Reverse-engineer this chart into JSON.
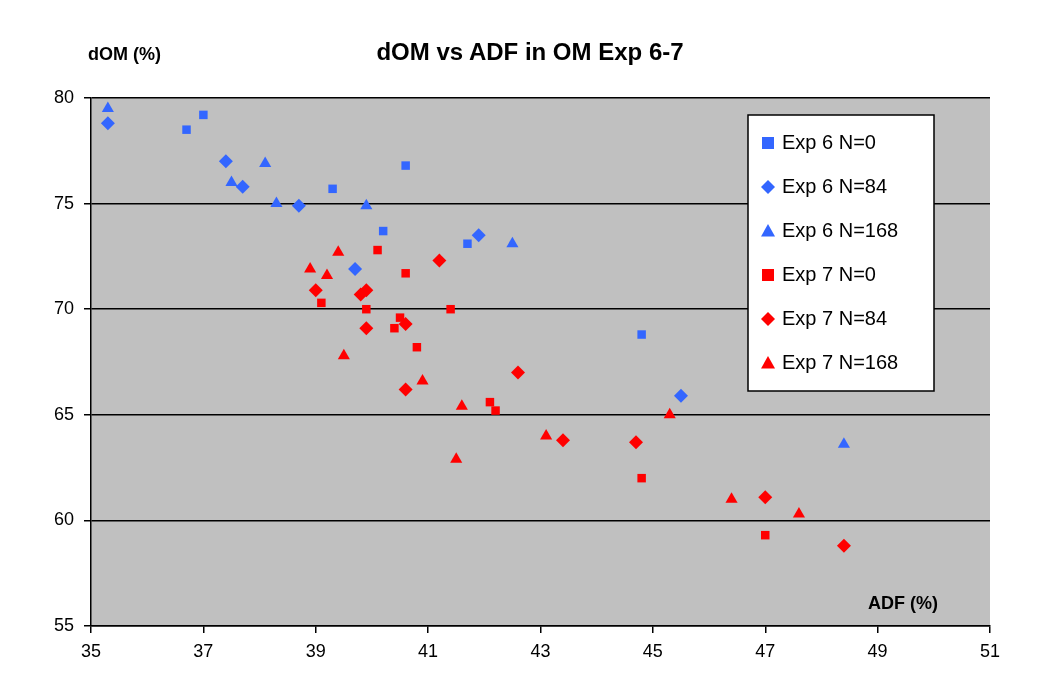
{
  "chart_data": {
    "type": "scatter",
    "title": "dOM vs ADF in OM Exp 6-7",
    "xlabel": "ADF (%)",
    "ylabel": "dOM (%)",
    "xlim": [
      35,
      51
    ],
    "xticks": [
      35,
      37,
      39,
      41,
      43,
      45,
      47,
      49,
      51
    ],
    "ylim": [
      55,
      80
    ],
    "yticks": [
      55,
      60,
      65,
      70,
      75,
      80
    ],
    "grid": "y",
    "legend": "top right",
    "series": [
      {
        "name": "Exp 6 N=0",
        "color": "#3366ff",
        "marker": "square",
        "x": [
          36.7,
          37.0,
          39.3,
          40.2,
          40.6,
          41.7,
          44.8
        ],
        "values": [
          78.5,
          79.2,
          75.7,
          73.7,
          76.8,
          73.1,
          68.8
        ]
      },
      {
        "name": "Exp 6 N=84",
        "color": "#3366ff",
        "marker": "diamond",
        "x": [
          35.3,
          37.4,
          37.7,
          38.7,
          39.7,
          41.9,
          45.5
        ],
        "values": [
          78.8,
          77.0,
          75.8,
          74.9,
          71.9,
          73.5,
          65.9
        ]
      },
      {
        "name": "Exp 6 N=168",
        "color": "#3366ff",
        "marker": "triangle",
        "x": [
          35.3,
          37.5,
          38.1,
          38.3,
          39.9,
          42.5,
          48.4
        ],
        "values": [
          79.5,
          76.0,
          76.9,
          75.0,
          74.9,
          73.1,
          63.6
        ]
      },
      {
        "name": "Exp 7 N=0",
        "color": "#ff0000",
        "marker": "square",
        "x": [
          40.1,
          40.6,
          39.9,
          39.1,
          40.5,
          40.4,
          41.4,
          40.8,
          42.1,
          42.2,
          44.8,
          47.0
        ],
        "values": [
          72.8,
          71.7,
          70.0,
          70.3,
          69.6,
          69.1,
          70.0,
          68.2,
          65.6,
          65.2,
          62.0,
          59.3
        ]
      },
      {
        "name": "Exp 7 N=84",
        "color": "#ff0000",
        "marker": "diamond",
        "x": [
          39.0,
          39.8,
          39.9,
          39.9,
          40.6,
          40.6,
          41.2,
          42.6,
          43.4,
          44.7,
          47.0,
          48.4
        ],
        "values": [
          70.9,
          70.7,
          70.9,
          69.1,
          69.3,
          66.2,
          72.3,
          67.0,
          63.8,
          63.7,
          61.1,
          58.8
        ]
      },
      {
        "name": "Exp 7 N=168",
        "color": "#ff0000",
        "marker": "triangle",
        "x": [
          38.9,
          39.2,
          39.4,
          39.5,
          40.5,
          40.9,
          41.6,
          41.5,
          43.1,
          45.3,
          46.4,
          47.6
        ],
        "values": [
          71.9,
          71.6,
          72.7,
          67.8,
          null,
          66.6,
          65.4,
          62.9,
          64.0,
          65.0,
          61.0,
          60.3
        ]
      }
    ]
  }
}
